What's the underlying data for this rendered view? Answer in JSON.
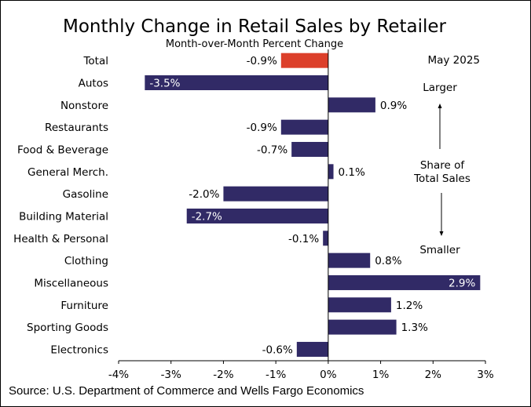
{
  "chart_data": {
    "type": "bar",
    "orientation": "horizontal",
    "title": "Monthly Change in Retail Sales by Retailer",
    "subtitle": "Month-over-Month Percent Change",
    "period": "May 2025",
    "categories": [
      "Total",
      "Autos",
      "Nonstore",
      "Restaurants",
      "Food & Beverage",
      "General Merch.",
      "Gasoline",
      "Building Material",
      "Health & Personal",
      "Clothing",
      "Miscellaneous",
      "Furniture",
      "Sporting Goods",
      "Electronics"
    ],
    "values": [
      -0.9,
      -3.5,
      0.9,
      -0.9,
      -0.7,
      0.1,
      -2.0,
      -2.7,
      -0.1,
      0.8,
      2.9,
      1.2,
      1.3,
      -0.6
    ],
    "value_labels": [
      "-0.9%",
      "-3.5%",
      "0.9%",
      "-0.9%",
      "-0.7%",
      "0.1%",
      "-2.0%",
      "-2.7%",
      "-0.1%",
      "0.8%",
      "2.9%",
      "1.2%",
      "1.3%",
      "-0.6%"
    ],
    "xlim": [
      -4,
      3
    ],
    "x_ticks": [
      -4,
      -3,
      -2,
      -1,
      0,
      1,
      2,
      3
    ],
    "x_tick_labels": [
      "-4%",
      "-3%",
      "-2%",
      "-1%",
      "0%",
      "1%",
      "2%",
      "3%"
    ],
    "grid": false,
    "colors": {
      "bar": "#312a66",
      "highlight": "#dc3f2a"
    },
    "highlight_category": "Total",
    "annotations": {
      "top": "Larger",
      "middle_line1": "Share of",
      "middle_line2": "Total Sales",
      "bottom": "Smaller"
    },
    "source": "Source: U.S. Department of Commerce and Wells Fargo Economics"
  }
}
